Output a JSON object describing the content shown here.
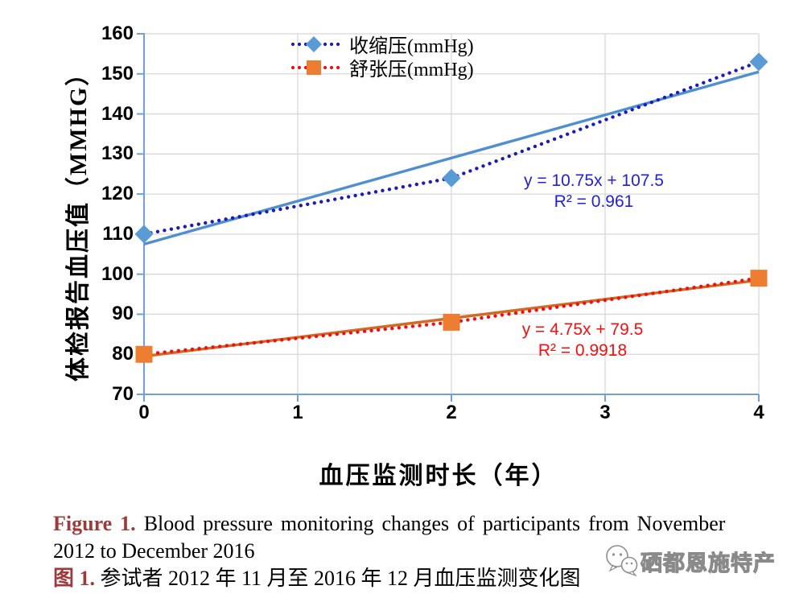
{
  "chart_data": {
    "type": "scatter-line",
    "x": [
      0,
      2,
      4
    ],
    "series": [
      {
        "name": "收缩压(mmHg)",
        "values": [
          110,
          124,
          153
        ],
        "marker": "diamond",
        "marker_color": "#5B9BD5",
        "dot_color": "#1C1CB0",
        "trend_color": "#4F8FD0",
        "equation": "y = 10.75x + 107.5",
        "r_squared": "R² = 0.961",
        "equation_color": "#2020DD",
        "trend": {
          "slope": 10.75,
          "intercept": 107.5
        }
      },
      {
        "name": "舒张压(mmHg)",
        "values": [
          80,
          88,
          99
        ],
        "marker": "square",
        "marker_color": "#ED7D31",
        "dot_color": "#EE1111",
        "trend_color": "#D06A26",
        "equation": "y = 4.75x + 79.5",
        "r_squared": "R² = 0.9918",
        "equation_color": "#F50F0F",
        "trend": {
          "slope": 4.75,
          "intercept": 79.5
        }
      }
    ],
    "xlabel": "血压监测时长（年）",
    "ylabel": "体检报告血压值（MMHG）",
    "xlim": [
      0,
      4
    ],
    "ylim": [
      70,
      160
    ],
    "x_ticks": [
      0,
      1,
      2,
      3,
      4
    ],
    "y_ticks": [
      70,
      80,
      90,
      100,
      110,
      120,
      130,
      140,
      150,
      160
    ],
    "grid": true,
    "legend_position": "top-center"
  },
  "colors": {
    "axis": "#6FA0D6",
    "grid": "#D8D8D8",
    "tick_label": "#000000",
    "figure_label": "#9C3A3C",
    "watermark": "#8E8E8E"
  },
  "caption": {
    "en_label": "Figure 1.",
    "en_line1": "Blood pressure monitoring changes of participants from November",
    "en_line2": "2012 to December 2016",
    "cn_label": "图 1.",
    "cn_text": "参试者 2012 年 11 月至 2016 年 12 月血压监测变化图"
  },
  "watermark": {
    "text": "硒都恩施特产"
  }
}
